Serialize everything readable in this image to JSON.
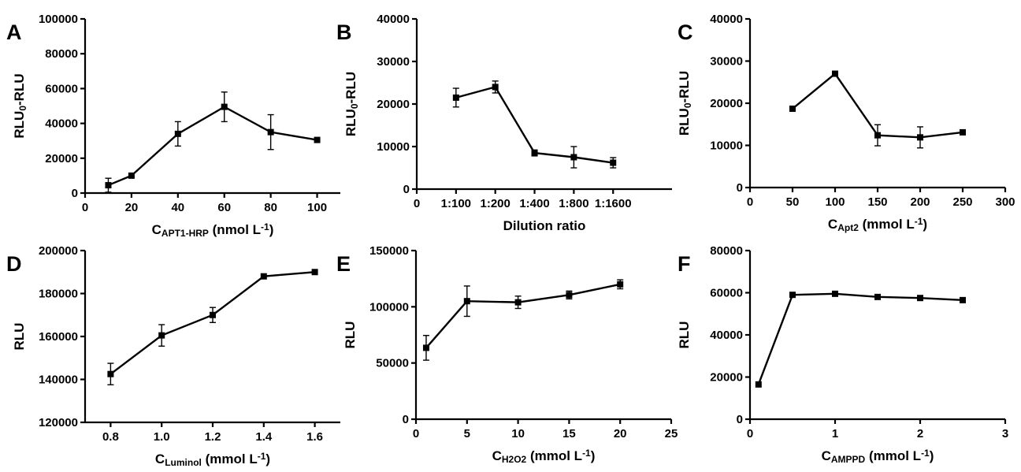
{
  "chart_data": [
    {
      "panel": "A",
      "type": "line",
      "xlabel_parts": [
        [
          "C",
          ""
        ],
        [
          "APT1-HRP",
          "sub"
        ],
        [
          " (nmol L",
          ""
        ],
        [
          "-1",
          "sup"
        ],
        [
          ")",
          ""
        ]
      ],
      "ylabel_parts": [
        [
          "RLU",
          ""
        ],
        [
          "0",
          "sub"
        ],
        [
          "-RLU",
          ""
        ]
      ],
      "xlim": [
        0,
        110
      ],
      "ylim": [
        0,
        100000
      ],
      "xticks": [
        0,
        20,
        40,
        60,
        80,
        100
      ],
      "yticks": [
        0,
        20000,
        40000,
        60000,
        80000,
        100000
      ],
      "x": [
        10,
        20,
        40,
        60,
        80,
        100
      ],
      "y": [
        4500,
        10000,
        34000,
        49500,
        35000,
        30500
      ],
      "err": [
        4000,
        0,
        7000,
        8500,
        10000,
        0
      ]
    },
    {
      "panel": "B",
      "type": "line",
      "xlabel_parts": [
        [
          "Dilution ratio",
          ""
        ]
      ],
      "ylabel_parts": [
        [
          "RLU",
          ""
        ],
        [
          "0",
          "sub"
        ],
        [
          "-RLU",
          ""
        ]
      ],
      "xlim": [
        0,
        6.5
      ],
      "ylim": [
        0,
        40000
      ],
      "xticks": [
        0,
        1,
        2,
        3,
        4,
        5
      ],
      "xticklabels": [
        "0",
        "1:100",
        "1:200",
        "1:400",
        "1:800",
        "1:1600"
      ],
      "yticks": [
        0,
        10000,
        20000,
        30000,
        40000
      ],
      "x": [
        1,
        2,
        3,
        4,
        5
      ],
      "y": [
        21500,
        24000,
        8500,
        7500,
        6200
      ],
      "err": [
        2200,
        1400,
        700,
        2500,
        1200
      ]
    },
    {
      "panel": "C",
      "type": "line",
      "xlabel_parts": [
        [
          "C",
          ""
        ],
        [
          "Apt2",
          "sub"
        ],
        [
          " (mmol L",
          ""
        ],
        [
          "-1",
          "sup"
        ],
        [
          ")",
          ""
        ]
      ],
      "ylabel_parts": [
        [
          "RLU",
          ""
        ],
        [
          "0",
          "sub"
        ],
        [
          "-RLU",
          ""
        ]
      ],
      "xlim": [
        0,
        300
      ],
      "ylim": [
        0,
        40000
      ],
      "xticks": [
        0,
        50,
        100,
        150,
        200,
        250,
        300
      ],
      "yticks": [
        0,
        10000,
        20000,
        30000,
        40000
      ],
      "x": [
        50,
        100,
        150,
        200,
        250
      ],
      "y": [
        18700,
        27000,
        12400,
        11900,
        13100
      ],
      "err": [
        0,
        0,
        2500,
        2500,
        0
      ]
    },
    {
      "panel": "D",
      "type": "line",
      "xlabel_parts": [
        [
          "C",
          ""
        ],
        [
          "Luminol",
          "sub"
        ],
        [
          " (mmol L",
          ""
        ],
        [
          "-1",
          "sup"
        ],
        [
          ")",
          ""
        ]
      ],
      "ylabel_parts": [
        [
          "RLU",
          ""
        ]
      ],
      "xlim": [
        0.7,
        1.7
      ],
      "ylim": [
        120000,
        200000
      ],
      "xticks": [
        0.8,
        1.0,
        1.2,
        1.4,
        1.6
      ],
      "xticklabels": [
        "0.8",
        "1.0",
        "1.2",
        "1.4",
        "1.6"
      ],
      "yticks": [
        120000,
        140000,
        160000,
        180000,
        200000
      ],
      "x": [
        0.8,
        1.0,
        1.2,
        1.4,
        1.6
      ],
      "y": [
        142500,
        160500,
        170000,
        188000,
        190000
      ],
      "err": [
        5000,
        5000,
        3500,
        0,
        0
      ]
    },
    {
      "panel": "E",
      "type": "line",
      "xlabel_parts": [
        [
          "C",
          ""
        ],
        [
          "H2O2",
          "sub"
        ],
        [
          " (mmol L",
          ""
        ],
        [
          "-1",
          "sup"
        ],
        [
          ")",
          ""
        ]
      ],
      "ylabel_parts": [
        [
          "RLU",
          ""
        ]
      ],
      "xlim": [
        0,
        25
      ],
      "ylim": [
        0,
        150000
      ],
      "xticks": [
        0,
        5,
        10,
        15,
        20,
        25
      ],
      "yticks": [
        0,
        50000,
        100000,
        150000
      ],
      "x": [
        1,
        5,
        10,
        15,
        20
      ],
      "y": [
        63500,
        105000,
        104000,
        110500,
        120000
      ],
      "err": [
        11000,
        13500,
        5500,
        3500,
        4000
      ]
    },
    {
      "panel": "F",
      "type": "line",
      "xlabel_parts": [
        [
          "C",
          ""
        ],
        [
          "AMPPD",
          "sub"
        ],
        [
          " (mmol L",
          ""
        ],
        [
          "-1",
          "sup"
        ],
        [
          ")",
          ""
        ]
      ],
      "ylabel_parts": [
        [
          "RLU",
          ""
        ]
      ],
      "xlim": [
        0,
        3
      ],
      "ylim": [
        0,
        80000
      ],
      "xticks": [
        0,
        1,
        2,
        3
      ],
      "yticks": [
        0,
        20000,
        40000,
        60000,
        80000
      ],
      "x": [
        0.1,
        0.5,
        1.0,
        1.5,
        2.0,
        2.5
      ],
      "y": [
        16500,
        59000,
        59500,
        58000,
        57500,
        56500
      ],
      "err": [
        0,
        0,
        0,
        0,
        0,
        0
      ]
    }
  ]
}
